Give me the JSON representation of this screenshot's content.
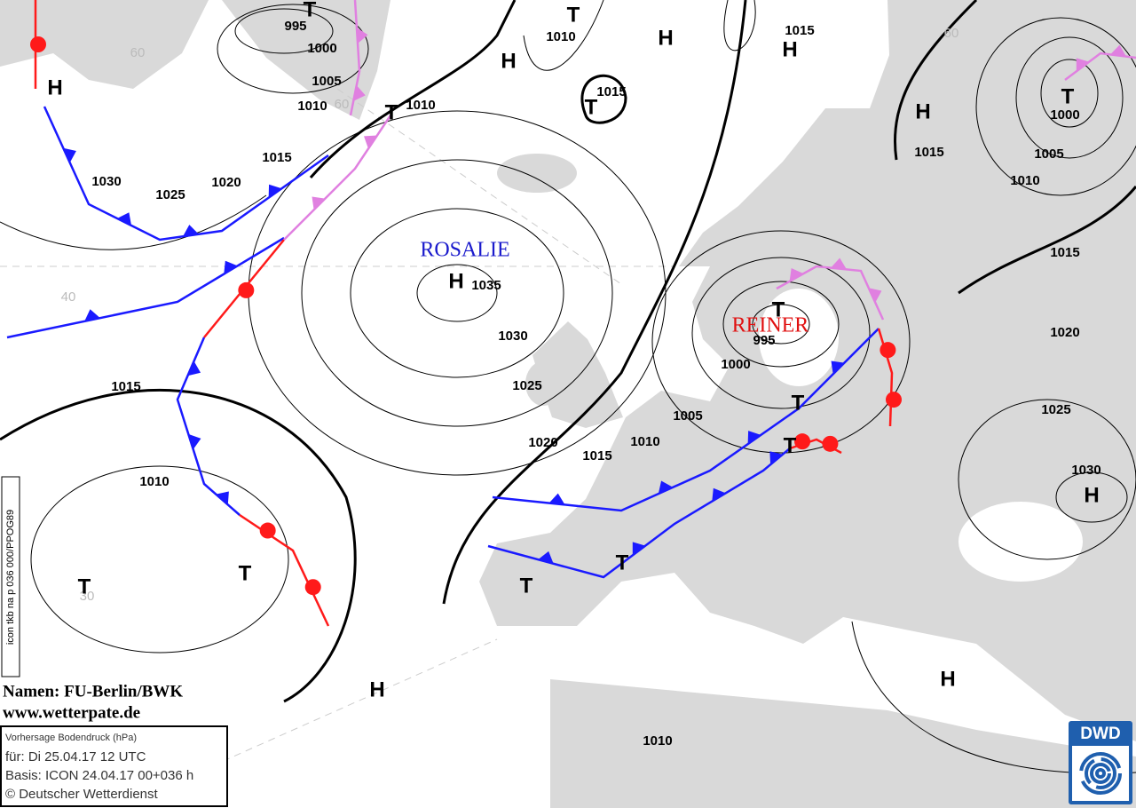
{
  "isobar_labels": [
    "995",
    "1000",
    "1005",
    "1010",
    "1010",
    "1015",
    "1030",
    "1025",
    "1020",
    "1010",
    "1015",
    "1015",
    "1000",
    "1005",
    "1010",
    "1015",
    "1015",
    "1035",
    "1030",
    "1025",
    "1020",
    "1015",
    "1010",
    "1005",
    "1000",
    "995",
    "1020",
    "1025",
    "1030",
    "1015",
    "1010",
    "1010"
  ],
  "pressure_centers": [
    "H",
    "H",
    "H",
    "H",
    "H",
    "H",
    "H",
    "H",
    "H",
    "T",
    "T",
    "T",
    "T",
    "T",
    "T",
    "T",
    "T",
    "T",
    "T",
    "T",
    "T"
  ],
  "system_names": [
    "ROSALIE",
    "REINER"
  ],
  "graticule_labels": [
    "60",
    "60",
    "40",
    "30",
    "60"
  ],
  "credits": {
    "names": "Namen: FU-Berlin/BWK",
    "website": "www.wetterpate.de"
  },
  "legend": {
    "title": "Vorhersage Bodendruck (hPa)",
    "valid": "für:  Di 25.04.17  12 UTC",
    "basis": "Basis: ICON  24.04.17 00+036 h",
    "copyright": "© Deutscher Wetterdienst"
  },
  "product_code": "icon tkb na p 036 000/PPOG89",
  "logo": "DWD"
}
